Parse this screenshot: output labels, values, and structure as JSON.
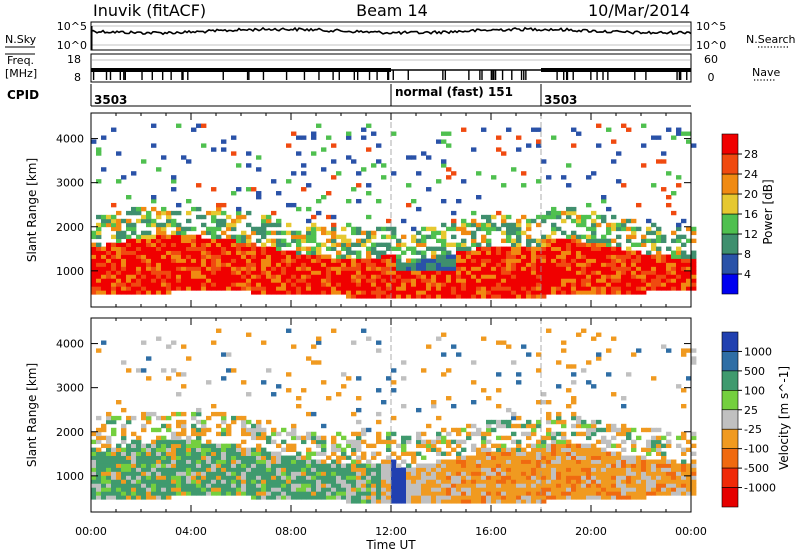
{
  "header": {
    "site": "Inuvik (fitACF)",
    "beam": "Beam 14",
    "date": "10/Mar/2014"
  },
  "noise_panel": {
    "left_label": "N.Sky",
    "left_ticks": [
      "10^5",
      "10^0"
    ],
    "right_ticks": [
      "10^5",
      "10^0"
    ],
    "right_label": "N.Search"
  },
  "freq_panel": {
    "left_label_1": "Freq.",
    "left_label_2": "[MHz]",
    "left_ticks": [
      "18",
      "8"
    ],
    "right_ticks": [
      "60",
      "0"
    ],
    "right_label": "Nave"
  },
  "cpid": {
    "label": "CPID",
    "segments": [
      {
        "start_h": 0,
        "end_h": 12,
        "text": "3503"
      },
      {
        "start_h": 12,
        "end_h": 18,
        "text": "normal (fast) 151"
      },
      {
        "start_h": 18,
        "end_h": 24,
        "text": "3503"
      }
    ]
  },
  "colors": {
    "power": [
      "#0000f0",
      "#2a52a8",
      "#3f8f6e",
      "#4fc04f",
      "#e6c830",
      "#f08a12",
      "#f04a10",
      "#f00000"
    ],
    "velocity": [
      "#2040b0",
      "#2f6ea5",
      "#3f9a6e",
      "#74cf3e",
      "#c0c0c0",
      "#f09a20",
      "#f06a10",
      "#f02a08",
      "#e60000"
    ]
  },
  "chart_data": [
    {
      "type": "heatmap",
      "name": "power",
      "ylabel": "Slant Range [km]",
      "xlim_hours": [
        0,
        24
      ],
      "ylim_km": [
        180,
        4580
      ],
      "y_ticks": [
        1000,
        2000,
        3000,
        4000
      ],
      "colorbar": {
        "label": "Power [dB]",
        "ticks": [
          "4",
          "8",
          "12",
          "16",
          "20",
          "24",
          "28"
        ],
        "range": [
          0,
          30
        ]
      },
      "description_values": {
        "main_band_km": [
          450,
          1700
        ],
        "main_band_power_db": 24,
        "upper_band_km": [
          1700,
          2400
        ],
        "upper_band_power_db": 12,
        "sparse_km": [
          2400,
          4300
        ]
      }
    },
    {
      "type": "heatmap",
      "name": "velocity",
      "ylabel": "Slant Range [km]",
      "xlabel": "Time UT",
      "x_ticks": [
        "00:00",
        "04:00",
        "08:00",
        "12:00",
        "16:00",
        "20:00",
        "00:00"
      ],
      "xlim_hours": [
        0,
        24
      ],
      "ylim_km": [
        180,
        4580
      ],
      "y_ticks": [
        1000,
        2000,
        3000,
        4000
      ],
      "colorbar": {
        "label": "Velocity [m s^-1]",
        "ticks": [
          "1000",
          "500",
          "100",
          "25",
          "-25",
          "-100",
          "-500",
          "-1000"
        ]
      },
      "description_values": {
        "early_band_velocity": 100,
        "late_band_velocity": -300
      }
    }
  ]
}
